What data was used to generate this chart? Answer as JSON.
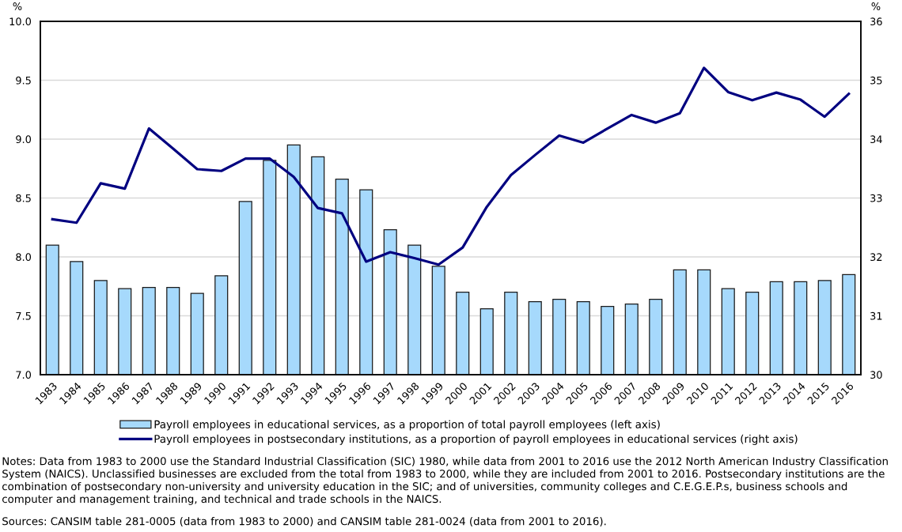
{
  "chart_data": {
    "type": "bar",
    "categories": [
      "1983",
      "1984",
      "1985",
      "1986",
      "1987",
      "1988",
      "1989",
      "1990",
      "1991",
      "1992",
      "1993",
      "1994",
      "1995",
      "1996",
      "1997",
      "1998",
      "1999",
      "2000",
      "2001",
      "2002",
      "2003",
      "2004",
      "2005",
      "2006",
      "2007",
      "2008",
      "2009",
      "2010",
      "2011",
      "2012",
      "2013",
      "2014",
      "2015",
      "2016"
    ],
    "series": [
      {
        "name": "Payroll employees in educational services, as a proportion of total payroll employees (left axis)",
        "color": "#a6d9fc",
        "values": [
          8.1,
          7.96,
          7.8,
          7.73,
          7.74,
          7.74,
          7.69,
          7.84,
          8.47,
          8.82,
          8.95,
          8.85,
          8.66,
          8.57,
          8.23,
          8.1,
          7.92,
          7.7,
          7.56,
          7.7,
          7.62,
          7.64,
          7.62,
          7.58,
          7.6,
          7.64,
          7.89,
          7.89,
          7.73,
          7.7,
          7.79,
          7.79,
          7.8,
          7.85
        ]
      },
      {
        "name": "Payroll employees in postsecondary institutions, as a proportion of payroll employees in educational services (right axis)",
        "type": "line",
        "axis": "y2",
        "color": "#000080",
        "values": [
          32.64,
          32.58,
          33.25,
          33.16,
          34.18,
          33.84,
          33.49,
          33.46,
          33.67,
          33.67,
          33.36,
          32.83,
          32.74,
          31.92,
          32.08,
          31.98,
          31.87,
          32.16,
          32.85,
          33.39,
          33.73,
          34.06,
          33.94,
          34.18,
          34.41,
          34.28,
          34.44,
          35.21,
          34.8,
          34.66,
          34.79,
          34.67,
          34.38,
          34.77
        ]
      }
    ],
    "ylabel": "%",
    "y2label": "%",
    "ylim": [
      7,
      10
    ],
    "yticks": [
      {
        "value": 7,
        "label": "7.0"
      },
      7.5,
      {
        "value": 8,
        "label": "8.0"
      },
      8.5,
      {
        "value": 9,
        "label": "9.0"
      },
      9.5,
      {
        "value": 10,
        "label": "10.0"
      }
    ],
    "y2lim": [
      30,
      36
    ],
    "y2ticks": [
      30,
      31,
      32,
      33,
      34,
      35,
      36
    ],
    "grid": "y",
    "legend": "bottom",
    "annotations": [
      "Notes: Data from 1983 to 2000 use the Standard Industrial Classification (SIC) 1980, while data from 2001 to 2016 use the 2012 North American Industry Classification System (NAICS). Unclassified businesses are excluded from the total from 1983 to 2000, while they are included from 2001 to 2016. Postsecondary institutions are the combination of postsecondary non-university and university education in the SIC; and of universities, community colleges and C.E.G.E.P.s, business schools and computer and management training, and technical and trade schools in the NAICS.",
      "Sources: CANSIM table 281-0005 (data from 1983 to 2000) and CANSIM table 281-0024 (data from 2001 to 2016)."
    ]
  }
}
